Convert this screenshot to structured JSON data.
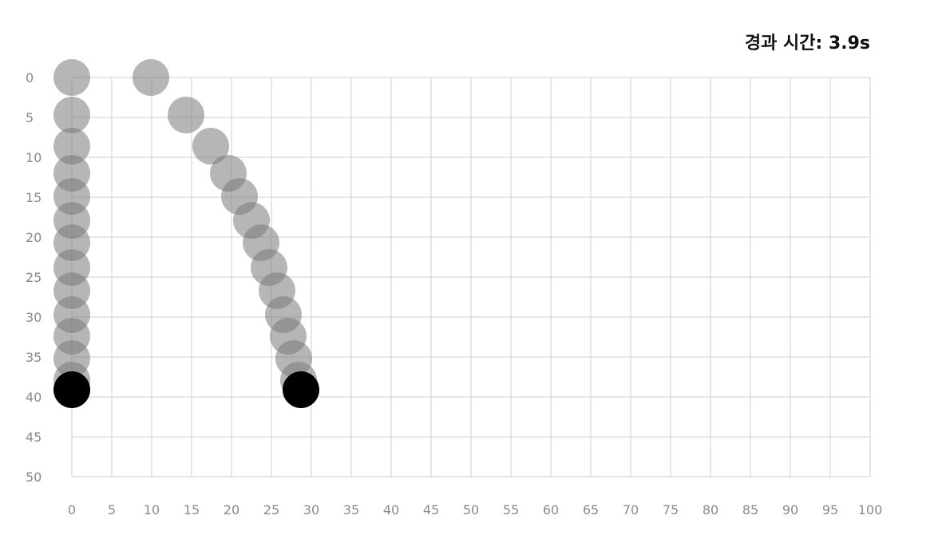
{
  "elapsed_label": "경과 시간:",
  "elapsed_value": "3.9s",
  "chart_data": {
    "type": "scatter",
    "title": "",
    "xlabel": "",
    "ylabel": "",
    "xlim": [
      0,
      100
    ],
    "ylim": [
      0,
      50
    ],
    "y_inverted": true,
    "grid": true,
    "x_ticks": [
      "0",
      "5",
      "10",
      "15",
      "20",
      "25",
      "30",
      "35",
      "40",
      "45",
      "50",
      "55",
      "60",
      "65",
      "70",
      "75",
      "80",
      "85",
      "90",
      "95",
      "100"
    ],
    "y_ticks": [
      "0",
      "5",
      "10",
      "15",
      "20",
      "25",
      "30",
      "35",
      "40",
      "45",
      "50"
    ],
    "series": [
      {
        "points": [
          {
            "x": 0,
            "y": 0
          },
          {
            "x": 0,
            "y": 4.7
          },
          {
            "x": 0,
            "y": 8.6
          },
          {
            "x": 0,
            "y": 12
          },
          {
            "x": 0,
            "y": 14.9
          },
          {
            "x": 0,
            "y": 17.9
          },
          {
            "x": 0,
            "y": 20.7
          },
          {
            "x": 0,
            "y": 23.8
          },
          {
            "x": 0,
            "y": 26.7
          },
          {
            "x": 0,
            "y": 29.7
          },
          {
            "x": 0,
            "y": 32.4
          },
          {
            "x": 0,
            "y": 35.2
          },
          {
            "x": 0,
            "y": 37.9
          }
        ],
        "current": {
          "x": 0,
          "y": 39.1
        },
        "color": "#7a7a7a",
        "current_color": "#000000"
      },
      {
        "points": [
          {
            "x": 9.9,
            "y": 0
          },
          {
            "x": 14.3,
            "y": 4.7
          },
          {
            "x": 17.4,
            "y": 8.6
          },
          {
            "x": 19.6,
            "y": 12
          },
          {
            "x": 21,
            "y": 14.9
          },
          {
            "x": 22.5,
            "y": 17.9
          },
          {
            "x": 23.7,
            "y": 20.7
          },
          {
            "x": 24.7,
            "y": 23.8
          },
          {
            "x": 25.7,
            "y": 26.7
          },
          {
            "x": 26.5,
            "y": 29.7
          },
          {
            "x": 27.1,
            "y": 32.4
          },
          {
            "x": 27.8,
            "y": 35.2
          },
          {
            "x": 28.4,
            "y": 37.9
          }
        ],
        "current": {
          "x": 28.7,
          "y": 39.1
        },
        "color": "#7a7a7a",
        "current_color": "#000000"
      }
    ]
  }
}
